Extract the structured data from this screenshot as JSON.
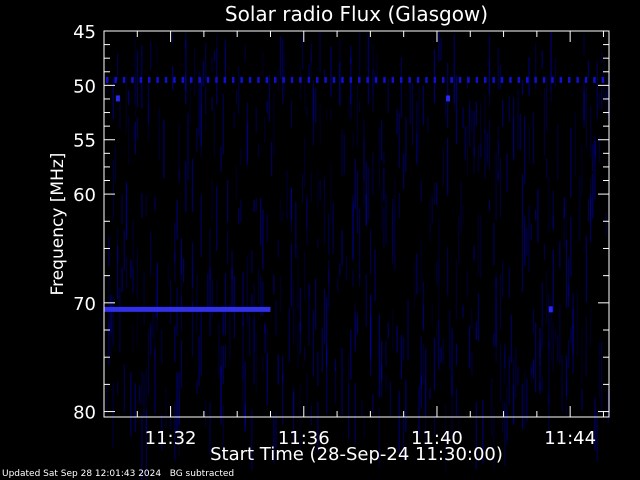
{
  "chart_data": {
    "type": "heatmap",
    "title": "Solar radio Flux (Glasgow)",
    "xlabel": "Start Time (28-Sep-24 11:30:00)",
    "ylabel": "Frequency [MHz]",
    "x_range": [
      "11:30:00",
      "11:45:10"
    ],
    "y_range": [
      45,
      80.5
    ],
    "y_inverted": true,
    "x_ticks": [
      "11:32",
      "11:36",
      "11:40",
      "11:44"
    ],
    "y_ticks": [
      45,
      50,
      55,
      60,
      70,
      80
    ],
    "colormap": [
      "#000000",
      "#0000ff"
    ],
    "features": [
      {
        "kind": "intermittent band",
        "frequency_mhz": 49.5,
        "time_start": "11:30",
        "time_end": "11:45"
      },
      {
        "kind": "band",
        "frequency_mhz": 70.6,
        "time_start": "11:30",
        "time_end": "11:35"
      },
      {
        "kind": "spot",
        "frequency_mhz": 70.6,
        "time": "11:43:25"
      },
      {
        "kind": "spot",
        "frequency_mhz": 51.2,
        "time": "11:30:25"
      },
      {
        "kind": "spot",
        "frequency_mhz": 51.2,
        "time": "11:40:20"
      }
    ]
  },
  "footer": {
    "updated": "Updated Sat Sep 28 12:01:43 2024",
    "mode": "BG subtracted"
  }
}
